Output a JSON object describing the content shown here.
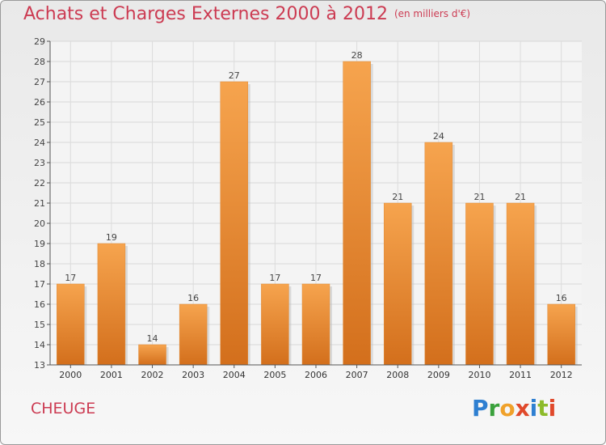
{
  "header": {
    "title": "Achats et Charges Externes 2000 à 2012",
    "unit": "(en milliers d'€)"
  },
  "commune": "CHEUGE",
  "logo": {
    "text": "Proxiti",
    "letters": [
      "P",
      "r",
      "o",
      "x",
      "i",
      "t",
      "i"
    ]
  },
  "colors": {
    "title": "#cc3b52",
    "bar_top": "#f6a44e",
    "bar_bottom": "#d36f1c"
  },
  "chart_data": {
    "type": "bar",
    "title": "Achats et Charges Externes 2000 à 2012",
    "subtitle": "(en milliers d'€)",
    "categories": [
      "2000",
      "2001",
      "2002",
      "2003",
      "2004",
      "2005",
      "2006",
      "2007",
      "2008",
      "2009",
      "2010",
      "2011",
      "2012"
    ],
    "values": [
      17,
      19,
      14,
      16,
      27,
      17,
      17,
      28,
      21,
      24,
      21,
      21,
      16
    ],
    "ylim": [
      13,
      29
    ],
    "yticks": [
      13,
      14,
      15,
      16,
      17,
      18,
      19,
      20,
      21,
      22,
      23,
      24,
      25,
      26,
      27,
      28,
      29
    ],
    "grid": true,
    "data_labels": true
  }
}
